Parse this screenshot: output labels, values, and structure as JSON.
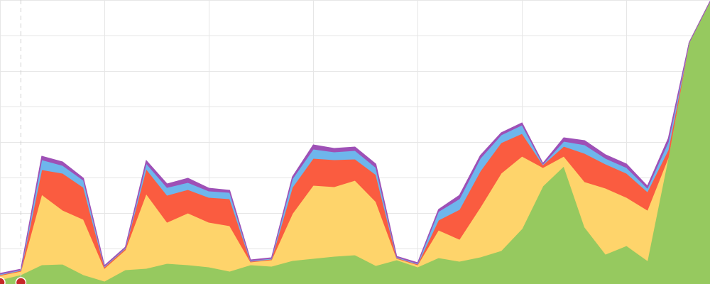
{
  "chart_data": {
    "type": "area",
    "stacked": true,
    "x": [
      0,
      1,
      2,
      3,
      4,
      5,
      6,
      7,
      8,
      9,
      10,
      11,
      12,
      13,
      14,
      15,
      16,
      17,
      18,
      19,
      20,
      21,
      22,
      23,
      24,
      25,
      26,
      27,
      28,
      29,
      30,
      31,
      32,
      33,
      34
    ],
    "xlim": [
      0,
      34
    ],
    "ylim": [
      0,
      400
    ],
    "grid": true,
    "legend": "none",
    "title": "",
    "xlabel": "",
    "ylabel": "",
    "series": [
      {
        "color": "#96c95f",
        "values": [
          6,
          13,
          27,
          28,
          13,
          4,
          20,
          22,
          29,
          27,
          24,
          18,
          27,
          25,
          33,
          36,
          39,
          41,
          26,
          34,
          24,
          37,
          32,
          38,
          47,
          78,
          138,
          166,
          80,
          42,
          54,
          33,
          178,
          340,
          398
        ]
      },
      {
        "color": "#fed46b",
        "values": [
          6,
          5,
          99,
          76,
          78,
          18,
          28,
          105,
          58,
          73,
          63,
          64,
          4,
          9,
          66,
          103,
          98,
          105,
          90,
          2,
          3,
          39,
          31,
          70,
          109,
          102,
          26,
          14,
          64,
          93,
          68,
          71,
          0,
          0,
          0
        ]
      },
      {
        "color": "#fa5c40",
        "values": [
          1,
          1,
          35,
          52,
          45,
          2,
          2,
          35,
          38,
          33,
          35,
          38,
          1,
          1,
          37,
          38,
          38,
          30,
          38,
          1,
          1,
          14,
          42,
          51,
          43,
          32,
          4,
          14,
          40,
          34,
          34,
          26,
          11,
          0,
          0
        ]
      },
      {
        "color": "#6eb6ec",
        "values": [
          1,
          1,
          14,
          11,
          10,
          1,
          1,
          8,
          11,
          10,
          9,
          9,
          1,
          1,
          12,
          13,
          11,
          12,
          10,
          1,
          1,
          12,
          15,
          18,
          11,
          12,
          1,
          7,
          12,
          8,
          8,
          5,
          11,
          0,
          0
        ]
      },
      {
        "color": "#9e50b6",
        "values": [
          1,
          1,
          5,
          5,
          3,
          1,
          1,
          4,
          5,
          6,
          4,
          3,
          1,
          1,
          3,
          6,
          5,
          5,
          5,
          1,
          1,
          3,
          5,
          4,
          3,
          3,
          1,
          5,
          6,
          5,
          5,
          3,
          5,
          0,
          0
        ]
      }
    ],
    "markers": [
      {
        "x": 1
      }
    ]
  }
}
